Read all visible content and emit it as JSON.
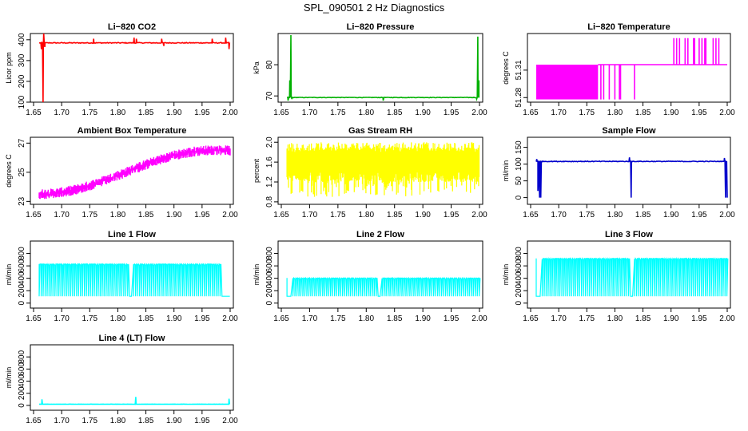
{
  "title": "SPL_090501  2 Hz Diagnostics",
  "panels": [
    {
      "key": "co2",
      "title": "Li−820 CO2",
      "ylabel": "Licor ppm",
      "color": "#ff0000",
      "ylim": [
        100,
        430
      ],
      "yticks": [
        "100",
        "200",
        "300",
        "400"
      ],
      "series": {
        "type": "steady",
        "level": 385,
        "jitter": 4,
        "spikes": [
          [
            1.664,
            355
          ],
          [
            1.667,
            100
          ],
          [
            1.668,
            430
          ],
          [
            1.67,
            365
          ],
          [
            1.757,
            405
          ],
          [
            1.829,
            410
          ],
          [
            1.833,
            405
          ],
          [
            1.878,
            405
          ],
          [
            1.882,
            370
          ],
          [
            1.968,
            405
          ],
          [
            1.992,
            410
          ],
          [
            1.998,
            355
          ]
        ]
      }
    },
    {
      "key": "pressure",
      "title": "Li−820 Pressure",
      "ylabel": "kPa",
      "color": "#00b000",
      "ylim": [
        68,
        90
      ],
      "yticks": [
        "70",
        "80"
      ],
      "series": {
        "type": "steady",
        "level": 69.5,
        "jitter": 0.15,
        "spikes": [
          [
            1.662,
            68.5
          ],
          [
            1.665,
            75
          ],
          [
            1.667,
            89.5
          ],
          [
            1.669,
            69
          ],
          [
            1.83,
            68.5
          ],
          [
            1.995,
            69
          ],
          [
            1.997,
            89
          ],
          [
            1.999,
            75
          ]
        ]
      }
    },
    {
      "key": "temperature",
      "title": "Li−820 Temperature",
      "ylabel": "degrees C",
      "color": "#ff00ff",
      "ylim": [
        51.275,
        51.35
      ],
      "yticks": [
        "51.28",
        "51.31"
      ],
      "series": {
        "type": "bands",
        "low": 51.278,
        "high": 51.316,
        "top": 51.345,
        "dense_bands": [
          [
            1.66,
            1.77
          ]
        ],
        "dips": [
          1.775,
          1.78,
          1.79,
          1.8,
          1.808,
          1.81,
          1.835
        ],
        "rises": [
          1.905,
          1.91,
          1.915,
          1.925,
          1.93,
          1.94,
          1.942,
          1.95,
          1.955,
          1.96,
          1.962,
          1.975,
          1.98,
          1.985
        ]
      }
    },
    {
      "key": "ambient",
      "title": "Ambient Box Temperature",
      "ylabel": "degrees C",
      "color": "#ff00ff",
      "ylim": [
        22.8,
        27.4
      ],
      "yticks": [
        "23",
        "25",
        "27"
      ],
      "series": {
        "type": "trend",
        "start": 23.5,
        "end": 26.5,
        "noise": 0.35
      }
    },
    {
      "key": "rh",
      "title": "Gas Stream RH",
      "ylabel": "percent",
      "color": "#ffff00",
      "ylim": [
        0.75,
        2.1
      ],
      "yticks": [
        "0.8",
        "1.2",
        "1.6",
        "2.0"
      ],
      "series": {
        "type": "noisy",
        "level": 1.6,
        "upper": 1.9,
        "lower": 0.9
      }
    },
    {
      "key": "sample",
      "title": "Sample Flow",
      "ylabel": "ml/min",
      "color": "#0000cc",
      "ylim": [
        -20,
        180
      ],
      "yticks": [
        "0",
        "50",
        "100",
        "150"
      ],
      "series": {
        "type": "steady",
        "level": 108,
        "jitter": 2,
        "spikes": [
          [
            1.661,
            115
          ],
          [
            1.663,
            20
          ],
          [
            1.666,
            0
          ],
          [
            1.668,
            0
          ],
          [
            1.67,
            108
          ],
          [
            1.826,
            120
          ],
          [
            1.829,
            0
          ],
          [
            1.831,
            108
          ],
          [
            1.995,
            118
          ],
          [
            1.997,
            0
          ],
          [
            2.0,
            0
          ]
        ]
      }
    },
    {
      "key": "line1",
      "title": "Line 1 Flow",
      "ylabel": "ml/min",
      "color": "#00ffff",
      "ylim": [
        -80,
        1000
      ],
      "yticks": [
        "0",
        "200",
        "400",
        "600",
        "800"
      ],
      "series": {
        "type": "pulses",
        "high": 630,
        "low": 110,
        "gaps": [
          [
            1.82,
            1.828
          ],
          [
            1.985,
            2.0
          ]
        ]
      }
    },
    {
      "key": "line2",
      "title": "Line 2 Flow",
      "ylabel": "ml/min",
      "color": "#00ffff",
      "ylim": [
        -80,
        1000
      ],
      "yticks": [
        "0",
        "200",
        "400",
        "600",
        "800"
      ],
      "series": {
        "type": "pulses",
        "high": 405,
        "low": 110,
        "gaps": [
          [
            1.66,
            1.67
          ],
          [
            1.82,
            1.826
          ]
        ]
      }
    },
    {
      "key": "line3",
      "title": "Line 3 Flow",
      "ylabel": "ml/min",
      "color": "#00ffff",
      "ylim": [
        -80,
        1000
      ],
      "yticks": [
        "0",
        "200",
        "400",
        "600",
        "800"
      ],
      "series": {
        "type": "pulses",
        "high": 720,
        "low": 110,
        "gaps": [
          [
            1.66,
            1.668
          ],
          [
            1.826,
            1.832
          ]
        ]
      }
    },
    {
      "key": "line4",
      "title": "Line 4 (LT) Flow",
      "ylabel": "ml/min",
      "color": "#00ffff",
      "ylim": [
        -80,
        1000
      ],
      "yticks": [
        "0",
        "200",
        "400",
        "600",
        "800"
      ],
      "series": {
        "type": "steady",
        "level": 20,
        "jitter": 2,
        "spikes": [
          [
            1.665,
            100
          ],
          [
            1.832,
            140
          ],
          [
            1.998,
            110
          ]
        ]
      }
    }
  ],
  "chart_data": {
    "type": "line",
    "title": "SPL_090501  2 Hz Diagnostics",
    "x": {
      "range": [
        1.65,
        2.0
      ],
      "ticks": [
        "1.65",
        "1.70",
        "1.75",
        "1.80",
        "1.85",
        "1.90",
        "1.95",
        "2.00"
      ]
    },
    "series": [
      {
        "name": "Li−820 CO2",
        "units": "Licor ppm",
        "approx": [
          [
            1.66,
            385
          ],
          [
            1.75,
            386
          ],
          [
            1.85,
            386
          ],
          [
            1.95,
            387
          ],
          [
            2.0,
            385
          ]
        ]
      },
      {
        "name": "Li−820 Pressure",
        "units": "kPa",
        "approx": [
          [
            1.66,
            69.5
          ],
          [
            1.75,
            69.5
          ],
          [
            1.85,
            69.4
          ],
          [
            1.95,
            69.4
          ],
          [
            2.0,
            69.5
          ]
        ]
      },
      {
        "name": "Li−820 Temperature",
        "units": "degrees C",
        "approx": [
          [
            1.66,
            51.3
          ],
          [
            1.8,
            51.316
          ],
          [
            1.9,
            51.316
          ],
          [
            2.0,
            51.316
          ]
        ]
      },
      {
        "name": "Ambient Box Temperature",
        "units": "degrees C",
        "approx": [
          [
            1.66,
            23.5
          ],
          [
            1.75,
            24.2
          ],
          [
            1.85,
            25.5
          ],
          [
            1.95,
            26.5
          ],
          [
            2.0,
            26.6
          ]
        ]
      },
      {
        "name": "Gas Stream RH",
        "units": "percent",
        "approx": [
          [
            1.66,
            1.6
          ],
          [
            1.8,
            1.6
          ],
          [
            2.0,
            1.6
          ]
        ]
      },
      {
        "name": "Sample Flow",
        "units": "ml/min",
        "approx": [
          [
            1.66,
            108
          ],
          [
            1.83,
            0
          ],
          [
            1.9,
            108
          ],
          [
            2.0,
            0
          ]
        ]
      },
      {
        "name": "Line 1 Flow",
        "units": "ml/min",
        "approx": [
          [
            1.66,
            630
          ],
          [
            1.8,
            630
          ],
          [
            1.99,
            110
          ]
        ]
      },
      {
        "name": "Line 2 Flow",
        "units": "ml/min",
        "approx": [
          [
            1.66,
            405
          ],
          [
            1.8,
            400
          ],
          [
            2.0,
            400
          ]
        ]
      },
      {
        "name": "Line 3 Flow",
        "units": "ml/min",
        "approx": [
          [
            1.66,
            720
          ],
          [
            1.8,
            710
          ],
          [
            2.0,
            600
          ]
        ]
      },
      {
        "name": "Line 4 (LT) Flow",
        "units": "ml/min",
        "approx": [
          [
            1.66,
            20
          ],
          [
            1.83,
            140
          ],
          [
            2.0,
            20
          ]
        ]
      }
    ]
  }
}
